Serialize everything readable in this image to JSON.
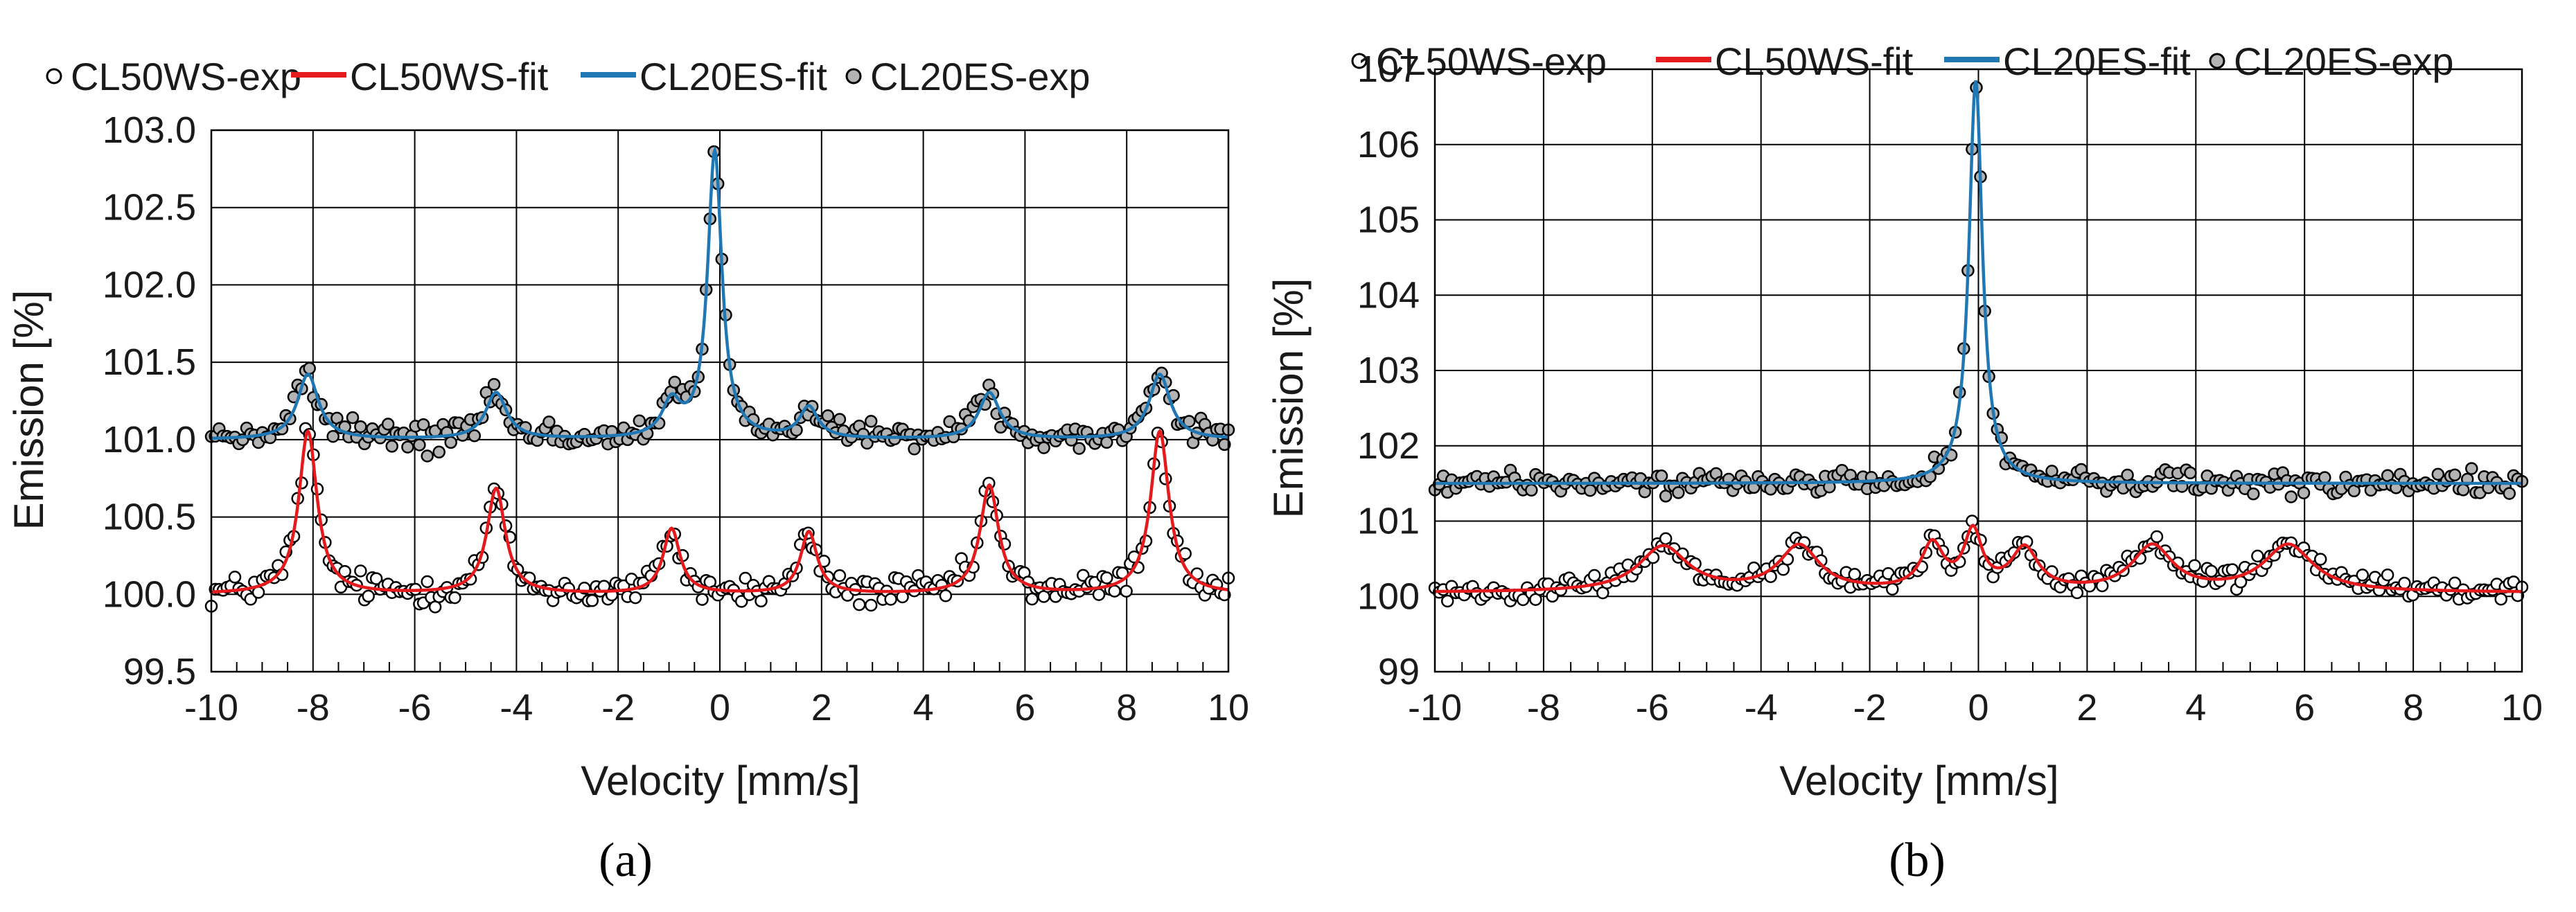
{
  "colors": {
    "fit_red": "#e41a1c",
    "fit_blue": "#1f78b4",
    "exp_open_fill": "#ffffff",
    "exp_gray_fill": "#b3b3b3",
    "marker_stroke": "#000000",
    "grid": "#000000"
  },
  "chart_data": [
    {
      "type": "scatter",
      "panel_label": "(a)",
      "xlabel": "Velocity [mm/s]",
      "ylabel": "Emission [%]",
      "xlim": [
        -10,
        10
      ],
      "ylim": [
        99.5,
        103.0
      ],
      "xticks": [
        -10,
        -8,
        -6,
        -4,
        -2,
        0,
        2,
        4,
        6,
        8,
        10
      ],
      "yticks": [
        99.5,
        100.0,
        100.5,
        101.0,
        101.5,
        102.0,
        102.5,
        103.0
      ],
      "ytick_labels": [
        "99.5",
        "100.0",
        "100.5",
        "101.0",
        "101.5",
        "102.0",
        "102.5",
        "103.0"
      ],
      "grid": true,
      "legend": [
        "CL50WS-exp",
        "CL50WS-fit",
        "CL20ES-fit",
        "CL20ES-exp"
      ],
      "legend_position": "top",
      "series": [
        {
          "name": "CL50WS-fit",
          "kind": "fit",
          "color": "#e41a1c",
          "baseline": 100.0,
          "peaks": [
            {
              "x": -8.1,
              "height": 1.05,
              "width": 0.22
            },
            {
              "x": -4.4,
              "height": 0.68,
              "width": 0.22
            },
            {
              "x": -0.95,
              "height": 0.42,
              "width": 0.2
            },
            {
              "x": 1.75,
              "height": 0.4,
              "width": 0.2
            },
            {
              "x": 5.3,
              "height": 0.7,
              "width": 0.22
            },
            {
              "x": 8.65,
              "height": 1.05,
              "width": 0.22
            }
          ]
        },
        {
          "name": "CL20ES-fit",
          "kind": "fit",
          "color": "#1f78b4",
          "baseline": 101.0,
          "peaks": [
            {
              "x": -8.1,
              "height": 0.42,
              "width": 0.25
            },
            {
              "x": -4.4,
              "height": 0.3,
              "width": 0.25
            },
            {
              "x": -0.95,
              "height": 0.22,
              "width": 0.22
            },
            {
              "x": -0.1,
              "height": 1.85,
              "width": 0.17
            },
            {
              "x": 1.75,
              "height": 0.2,
              "width": 0.22
            },
            {
              "x": 5.3,
              "height": 0.3,
              "width": 0.25
            },
            {
              "x": 8.65,
              "height": 0.42,
              "width": 0.25
            }
          ]
        },
        {
          "name": "CL50WS-exp",
          "kind": "exp",
          "follows": "CL50WS-fit",
          "marker": "open-circle",
          "n_points": 260,
          "noise": 0.05
        },
        {
          "name": "CL20ES-exp",
          "kind": "exp",
          "follows": "CL20ES-fit",
          "marker": "gray-circle",
          "n_points": 260,
          "noise": 0.045
        }
      ]
    },
    {
      "type": "scatter",
      "panel_label": "(b)",
      "xlabel": "Velocity [mm/s]",
      "ylabel": "Emission [%]",
      "xlim": [
        -10,
        10
      ],
      "ylim": [
        99,
        107
      ],
      "xticks": [
        -10,
        -8,
        -6,
        -4,
        -2,
        0,
        2,
        4,
        6,
        8,
        10
      ],
      "yticks": [
        99,
        100,
        101,
        102,
        103,
        104,
        105,
        106,
        107
      ],
      "ytick_labels": [
        "99",
        "100",
        "101",
        "102",
        "103",
        "104",
        "105",
        "106",
        "107"
      ],
      "grid": true,
      "legend": [
        "CL50WS-exp",
        "CL50WS-fit",
        "CL20ES-fit",
        "CL20ES-exp"
      ],
      "legend_position": "top",
      "series": [
        {
          "name": "CL50WS-fit",
          "kind": "fit",
          "color": "#e41a1c",
          "baseline": 100.05,
          "peaks": [
            {
              "x": -5.8,
              "height": 0.6,
              "width": 0.55
            },
            {
              "x": -3.3,
              "height": 0.6,
              "width": 0.45
            },
            {
              "x": -0.85,
              "height": 0.6,
              "width": 0.25
            },
            {
              "x": -0.1,
              "height": 0.75,
              "width": 0.2
            },
            {
              "x": 0.85,
              "height": 0.55,
              "width": 0.3
            },
            {
              "x": 3.2,
              "height": 0.6,
              "width": 0.45
            },
            {
              "x": 5.7,
              "height": 0.62,
              "width": 0.55
            }
          ]
        },
        {
          "name": "CL20ES-fit",
          "kind": "fit",
          "color": "#1f78b4",
          "baseline": 101.5,
          "peaks": [
            {
              "x": -0.05,
              "height": 5.35,
              "width": 0.15
            }
          ]
        },
        {
          "name": "CL50WS-exp",
          "kind": "exp",
          "follows": "CL50WS-fit",
          "marker": "open-circle",
          "n_points": 260,
          "noise": 0.07
        },
        {
          "name": "CL20ES-exp",
          "kind": "exp",
          "follows": "CL20ES-fit",
          "marker": "gray-circle",
          "n_points": 260,
          "noise": 0.07
        }
      ]
    }
  ]
}
